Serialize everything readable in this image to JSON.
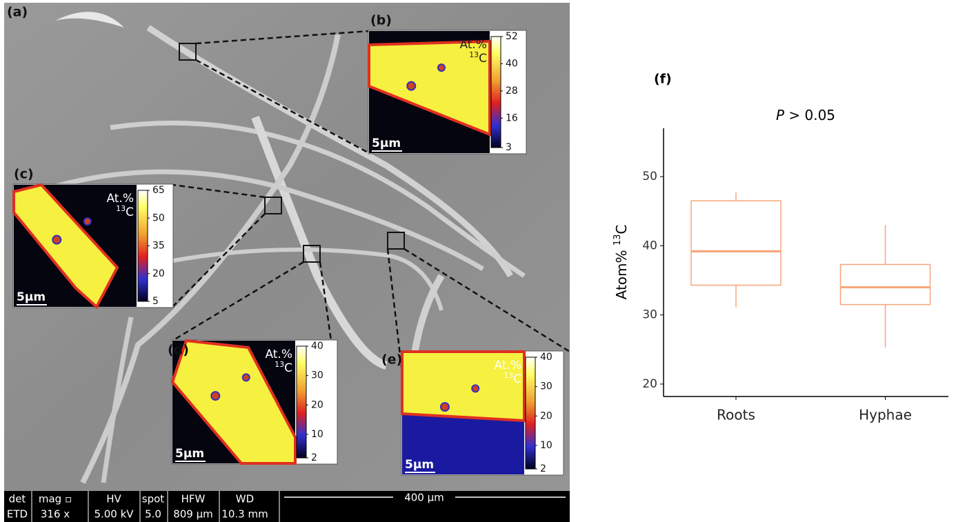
{
  "sem": {
    "label": "(a)",
    "info_headers": [
      "det",
      "mag ▫",
      "HV",
      "spot",
      "HFW",
      "WD"
    ],
    "info_values": [
      "ETD",
      "316 x",
      "5.00 kV",
      "5.0",
      "809 µm",
      "10.3 mm"
    ],
    "scale_bar": "400 µm"
  },
  "insets": [
    {
      "label": "(b)",
      "unit": "At.%",
      "mass": "13",
      "element": "C",
      "scale_bar": "5µm",
      "colorbar_ticks": [
        3,
        16,
        28,
        40,
        52
      ]
    },
    {
      "label": "(c)",
      "unit": "At.%",
      "mass": "13",
      "element": "C",
      "scale_bar": "5µm",
      "colorbar_ticks": [
        5,
        20,
        35,
        50,
        65
      ]
    },
    {
      "label": "(d)",
      "unit": "At.%",
      "mass": "13",
      "element": "C",
      "scale_bar": "5µm",
      "colorbar_ticks": [
        2,
        10,
        20,
        30,
        40
      ]
    },
    {
      "label": "(e)",
      "unit": "At.%",
      "mass": "13",
      "element": "C",
      "scale_bar": "5µm",
      "colorbar_ticks": [
        2,
        10,
        20,
        30,
        40
      ]
    }
  ],
  "chart_data": {
    "type": "box",
    "title": "(f)",
    "annotation_symbol": "P",
    "annotation_text": "> 0.05",
    "y_label": "Atom% ",
    "y_label_mass": "13",
    "y_label_element": "C",
    "categories": [
      "Roots",
      "Hyphae"
    ],
    "boxes": [
      {
        "min": 31.1,
        "q1": 34.3,
        "median": 39.2,
        "q3": 46.5,
        "max": 47.7
      },
      {
        "min": 25.3,
        "q1": 31.5,
        "median": 34.0,
        "q3": 37.3,
        "max": 43.0
      }
    ],
    "color": "#f6a578",
    "ylim": [
      18.2,
      57
    ],
    "yticks": [
      20,
      30,
      40,
      50
    ],
    "grid": false
  }
}
